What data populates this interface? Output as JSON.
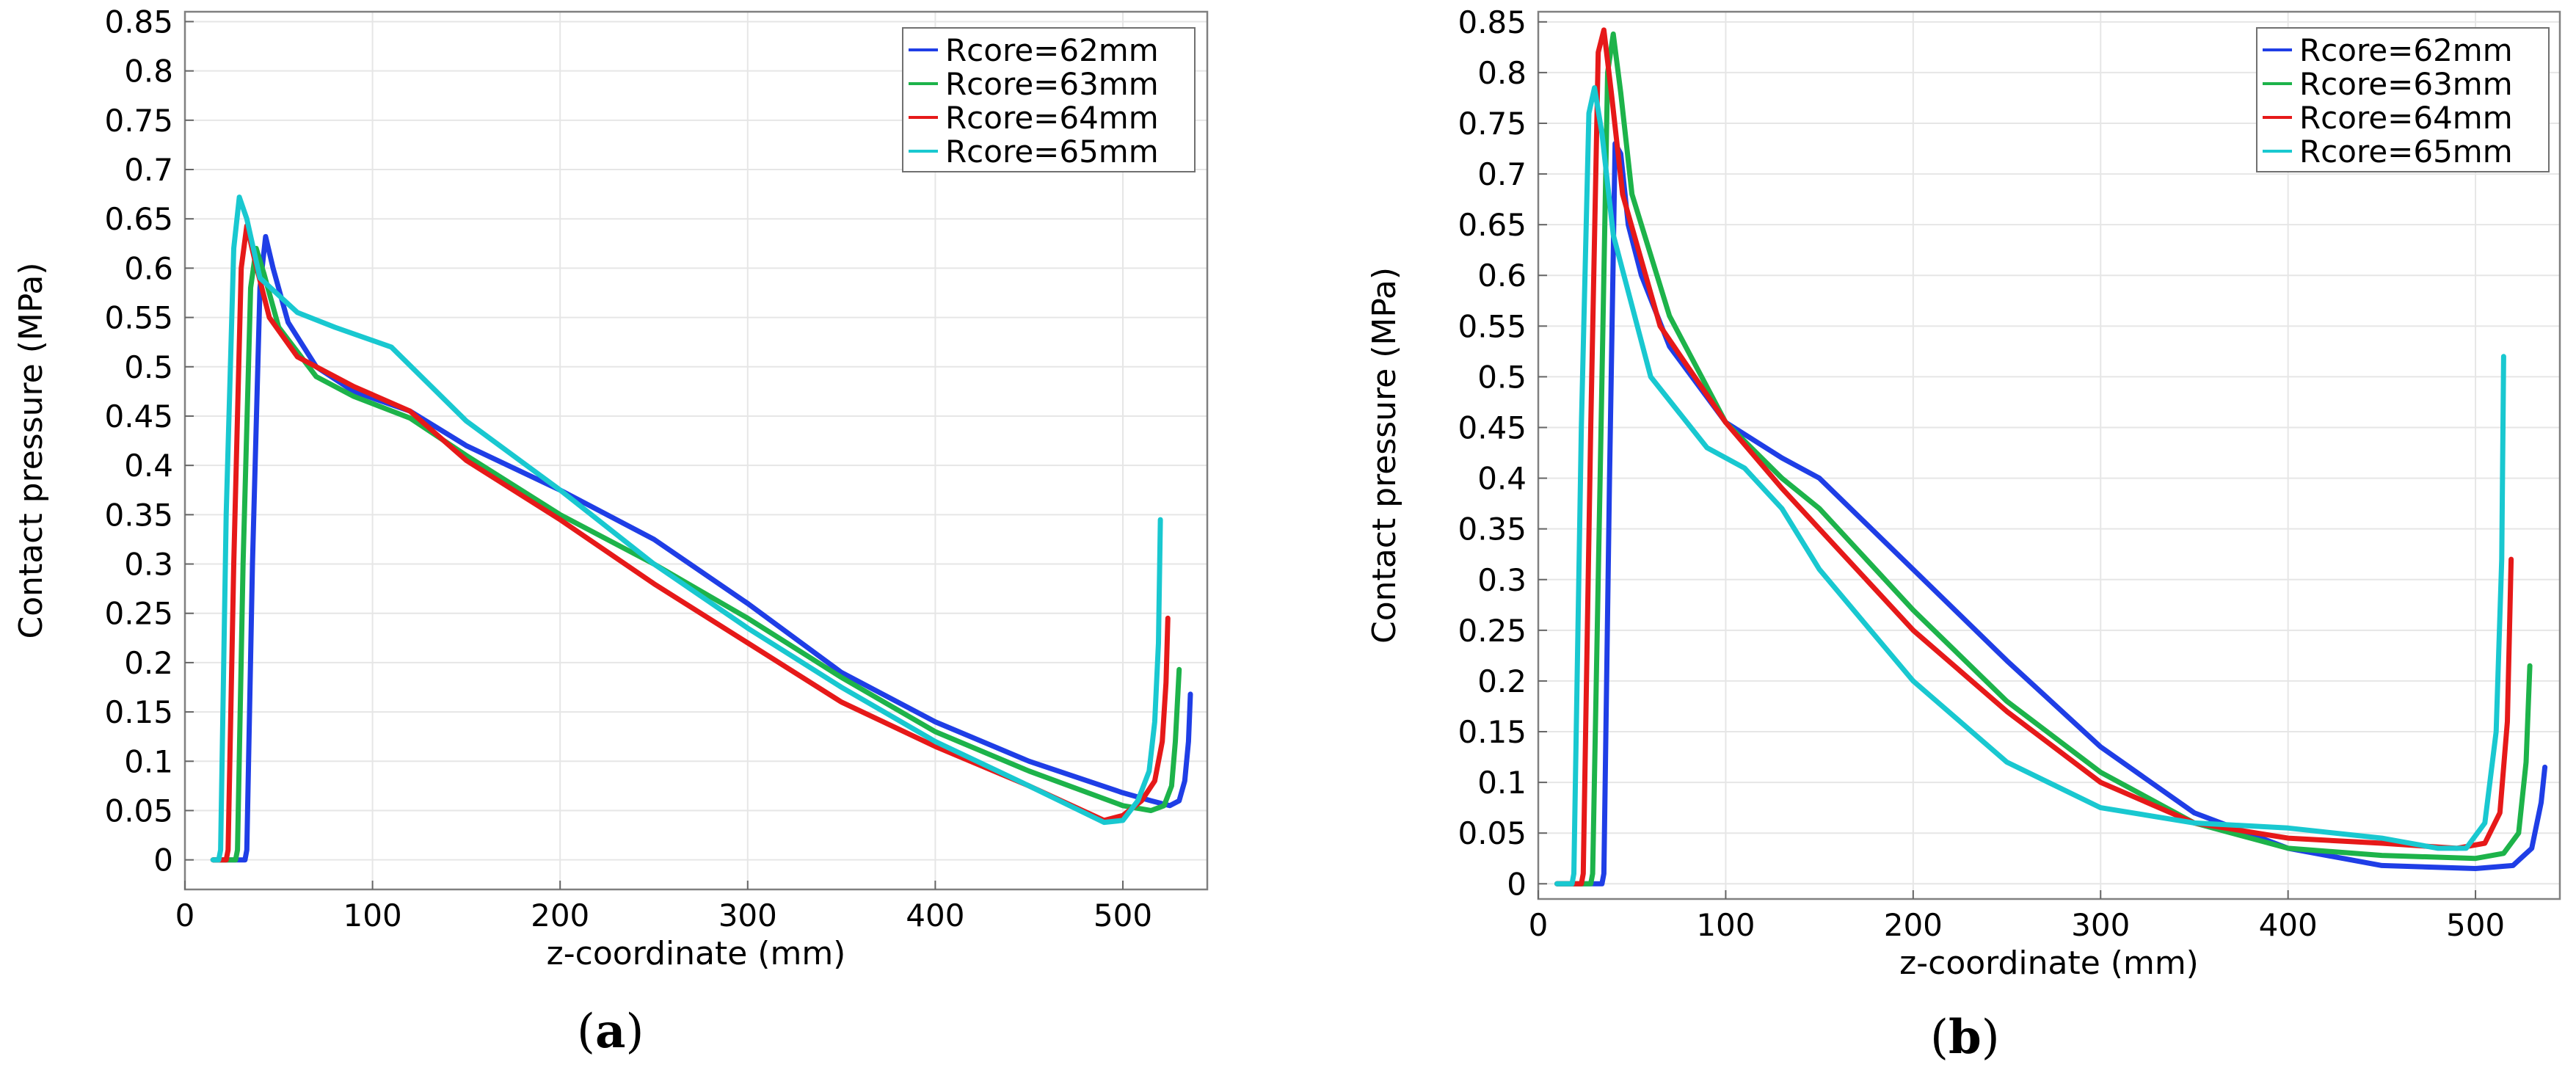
{
  "chart_data": [
    {
      "id": "a",
      "type": "line",
      "panel_label": "a",
      "xlabel": "z-coordinate (mm)",
      "ylabel": "Contact pressure (MPa)",
      "xlim": [
        0,
        545
      ],
      "ylim": [
        -0.03,
        0.86
      ],
      "xticks": [
        0,
        100,
        200,
        300,
        400,
        500
      ],
      "yticks": [
        0,
        0.05,
        0.1,
        0.15,
        0.2,
        0.25,
        0.3,
        0.35,
        0.4,
        0.45,
        0.5,
        0.55,
        0.6,
        0.65,
        0.7,
        0.75,
        0.8,
        0.85
      ],
      "ytick_labels": [
        "0",
        "0.05",
        "0.1",
        "0.15",
        "0.2",
        "0.25",
        "0.3",
        "0.35",
        "0.4",
        "0.45",
        "0.5",
        "0.55",
        "0.6",
        "0.65",
        "0.7",
        "0.75",
        "0.8",
        "0.85"
      ],
      "grid": true,
      "legend_position": "top-right",
      "series": [
        {
          "name": "Rcore=62mm",
          "color": "#1f3ee6",
          "x": [
            15,
            32,
            33,
            36,
            40,
            43,
            47,
            55,
            70,
            90,
            120,
            150,
            200,
            250,
            300,
            350,
            400,
            450,
            500,
            515,
            525,
            530,
            533,
            535,
            536
          ],
          "y": [
            0,
            0,
            0.01,
            0.3,
            0.58,
            0.632,
            0.6,
            0.545,
            0.5,
            0.475,
            0.455,
            0.42,
            0.375,
            0.325,
            0.26,
            0.19,
            0.14,
            0.1,
            0.068,
            0.06,
            0.055,
            0.06,
            0.08,
            0.12,
            0.168
          ]
        },
        {
          "name": "Rcore=63mm",
          "color": "#1db34a",
          "x": [
            15,
            27,
            28,
            31,
            35,
            38,
            42,
            50,
            70,
            90,
            120,
            150,
            200,
            250,
            300,
            350,
            400,
            450,
            500,
            515,
            522,
            526,
            528,
            530
          ],
          "y": [
            0,
            0,
            0.01,
            0.3,
            0.58,
            0.62,
            0.595,
            0.54,
            0.49,
            0.47,
            0.448,
            0.41,
            0.35,
            0.3,
            0.245,
            0.185,
            0.13,
            0.09,
            0.055,
            0.05,
            0.055,
            0.075,
            0.12,
            0.193
          ]
        },
        {
          "name": "Rcore=64mm",
          "color": "#e61919",
          "x": [
            15,
            22,
            23,
            26,
            30,
            33,
            37,
            45,
            60,
            90,
            120,
            150,
            200,
            250,
            300,
            350,
            400,
            450,
            490,
            500,
            510,
            517,
            521,
            523,
            524
          ],
          "y": [
            0,
            0,
            0.01,
            0.3,
            0.6,
            0.643,
            0.61,
            0.55,
            0.51,
            0.48,
            0.455,
            0.405,
            0.345,
            0.28,
            0.22,
            0.16,
            0.115,
            0.075,
            0.04,
            0.045,
            0.06,
            0.08,
            0.12,
            0.18,
            0.245
          ]
        },
        {
          "name": "Rcore=65mm",
          "color": "#19c8d0",
          "x": [
            15,
            18,
            19,
            22,
            26,
            29,
            33,
            40,
            60,
            80,
            110,
            150,
            200,
            250,
            300,
            350,
            400,
            450,
            490,
            500,
            508,
            514,
            517,
            519,
            520
          ],
          "y": [
            0,
            0,
            0.01,
            0.35,
            0.62,
            0.672,
            0.65,
            0.59,
            0.555,
            0.54,
            0.52,
            0.445,
            0.375,
            0.3,
            0.235,
            0.175,
            0.12,
            0.075,
            0.038,
            0.04,
            0.06,
            0.09,
            0.14,
            0.22,
            0.345
          ]
        }
      ]
    },
    {
      "id": "b",
      "type": "line",
      "panel_label": "b",
      "xlabel": "z-coordinate (mm)",
      "ylabel": "Contact pressure (MPa)",
      "xlim": [
        0,
        545
      ],
      "ylim": [
        -0.015,
        0.86
      ],
      "xticks": [
        0,
        100,
        200,
        300,
        400,
        500
      ],
      "yticks": [
        0,
        0.05,
        0.1,
        0.15,
        0.2,
        0.25,
        0.3,
        0.35,
        0.4,
        0.45,
        0.5,
        0.55,
        0.6,
        0.65,
        0.7,
        0.75,
        0.8,
        0.85
      ],
      "ytick_labels": [
        "0",
        "0.05",
        "0.1",
        "0.15",
        "0.2",
        "0.25",
        "0.3",
        "0.35",
        "0.4",
        "0.45",
        "0.5",
        "0.55",
        "0.6",
        "0.65",
        "0.7",
        "0.75",
        "0.8",
        "0.85"
      ],
      "grid": true,
      "legend_position": "top-right",
      "series": [
        {
          "name": "Rcore=62mm",
          "color": "#1f3ee6",
          "x": [
            10,
            34,
            35,
            38,
            41,
            44,
            48,
            55,
            70,
            100,
            130,
            150,
            200,
            250,
            300,
            350,
            400,
            450,
            500,
            520,
            530,
            535,
            537
          ],
          "y": [
            0,
            0,
            0.01,
            0.4,
            0.73,
            0.72,
            0.65,
            0.6,
            0.53,
            0.455,
            0.42,
            0.4,
            0.31,
            0.22,
            0.135,
            0.07,
            0.035,
            0.018,
            0.015,
            0.018,
            0.035,
            0.08,
            0.115
          ]
        },
        {
          "name": "Rcore=63mm",
          "color": "#1db34a",
          "x": [
            10,
            28,
            29,
            33,
            37,
            40,
            44,
            50,
            70,
            100,
            130,
            150,
            200,
            250,
            300,
            350,
            400,
            450,
            500,
            515,
            523,
            527,
            529
          ],
          "y": [
            0,
            0,
            0.01,
            0.4,
            0.8,
            0.838,
            0.78,
            0.68,
            0.56,
            0.455,
            0.4,
            0.37,
            0.27,
            0.18,
            0.11,
            0.06,
            0.035,
            0.028,
            0.025,
            0.03,
            0.05,
            0.12,
            0.215
          ]
        },
        {
          "name": "Rcore=64mm",
          "color": "#e61919",
          "x": [
            10,
            23,
            24,
            28,
            32,
            35,
            39,
            45,
            65,
            100,
            130,
            150,
            200,
            250,
            300,
            350,
            400,
            450,
            490,
            505,
            513,
            517,
            519
          ],
          "y": [
            0,
            0,
            0.01,
            0.45,
            0.82,
            0.842,
            0.78,
            0.68,
            0.55,
            0.455,
            0.39,
            0.35,
            0.25,
            0.17,
            0.1,
            0.06,
            0.045,
            0.04,
            0.035,
            0.04,
            0.07,
            0.16,
            0.32
          ]
        },
        {
          "name": "Rcore=65mm",
          "color": "#19c8d0",
          "x": [
            10,
            18,
            19,
            23,
            27,
            30,
            34,
            40,
            60,
            90,
            110,
            130,
            150,
            200,
            250,
            300,
            350,
            400,
            450,
            480,
            495,
            505,
            511,
            514,
            515
          ],
          "y": [
            0,
            0,
            0.01,
            0.45,
            0.76,
            0.785,
            0.74,
            0.64,
            0.5,
            0.43,
            0.41,
            0.37,
            0.31,
            0.2,
            0.12,
            0.075,
            0.06,
            0.055,
            0.045,
            0.035,
            0.035,
            0.06,
            0.15,
            0.32,
            0.52
          ]
        }
      ]
    }
  ]
}
